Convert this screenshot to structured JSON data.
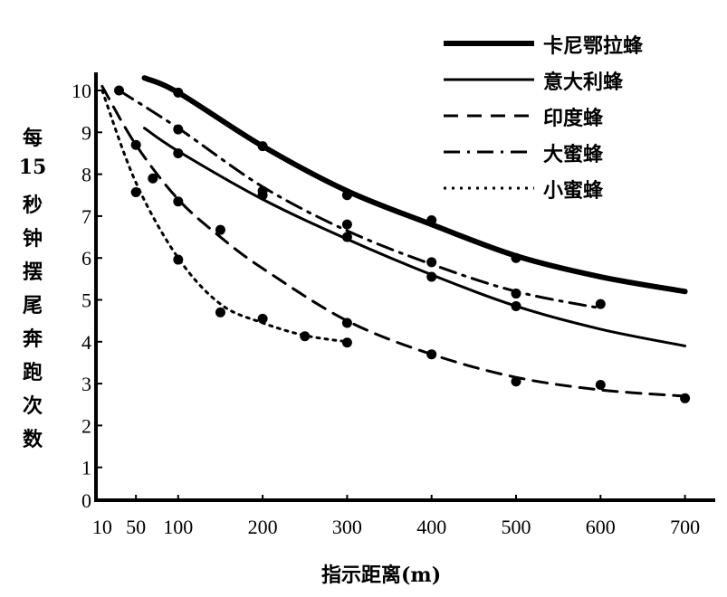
{
  "chart_data": {
    "type": "line",
    "title": "",
    "xlabel": "指示距离(m)",
    "ylabel": [
      "每",
      "15",
      "秒",
      "钟",
      "摆",
      "尾",
      "奔",
      "跑",
      "次",
      "数"
    ],
    "xlim": [
      0,
      720
    ],
    "ylim": [
      0,
      10
    ],
    "x_ticks": [
      10,
      50,
      100,
      200,
      300,
      400,
      500,
      600,
      700
    ],
    "x_tick_labels": [
      "10",
      "50",
      "100",
      "200",
      "300",
      "400",
      "500",
      "600",
      "700"
    ],
    "y_ticks": [
      0,
      1,
      2,
      3,
      4,
      5,
      6,
      7,
      8,
      9,
      10
    ],
    "y_tick_labels": [
      "0",
      "1",
      "2",
      "3",
      "4",
      "5",
      "6",
      "7",
      "8",
      "9",
      "10"
    ],
    "grid": false,
    "legend_position": "top-right",
    "series": [
      {
        "name": "卡尼鄂拉蜂",
        "style": "thick",
        "curve": [
          [
            60,
            10.3
          ],
          [
            100,
            9.95
          ],
          [
            200,
            8.67
          ],
          [
            300,
            7.6
          ],
          [
            400,
            6.8
          ],
          [
            500,
            6.05
          ],
          [
            600,
            5.55
          ],
          [
            700,
            5.2
          ]
        ],
        "points": [
          [
            100,
            9.95
          ],
          [
            200,
            8.67
          ],
          [
            300,
            7.5
          ],
          [
            400,
            6.9
          ],
          [
            500,
            6.0
          ]
        ]
      },
      {
        "name": "意大利蜂",
        "style": "solid",
        "curve": [
          [
            60,
            9.1
          ],
          [
            100,
            8.55
          ],
          [
            200,
            7.4
          ],
          [
            300,
            6.45
          ],
          [
            400,
            5.6
          ],
          [
            500,
            4.85
          ],
          [
            600,
            4.3
          ],
          [
            700,
            3.9
          ]
        ],
        "points": [
          [
            100,
            8.5
          ],
          [
            200,
            7.5
          ],
          [
            300,
            6.5
          ],
          [
            400,
            5.55
          ],
          [
            500,
            4.85
          ]
        ]
      },
      {
        "name": "印度蜂",
        "style": "dashed",
        "curve": [
          [
            10,
            10.1
          ],
          [
            50,
            8.7
          ],
          [
            100,
            7.4
          ],
          [
            150,
            6.5
          ],
          [
            200,
            5.75
          ],
          [
            300,
            4.5
          ],
          [
            400,
            3.7
          ],
          [
            500,
            3.15
          ],
          [
            600,
            2.85
          ],
          [
            700,
            2.7
          ]
        ],
        "points": [
          [
            50,
            8.7
          ],
          [
            70,
            7.9
          ],
          [
            100,
            7.35
          ],
          [
            150,
            6.67
          ],
          [
            300,
            4.45
          ],
          [
            400,
            3.7
          ],
          [
            500,
            3.05
          ],
          [
            600,
            2.97
          ],
          [
            700,
            2.65
          ]
        ]
      },
      {
        "name": "大蜜蜂",
        "style": "dashdot",
        "curve": [
          [
            30,
            10.0
          ],
          [
            100,
            9.1
          ],
          [
            200,
            7.7
          ],
          [
            300,
            6.65
          ],
          [
            400,
            5.85
          ],
          [
            500,
            5.2
          ],
          [
            600,
            4.8
          ]
        ],
        "points": [
          [
            30,
            10.0
          ],
          [
            100,
            9.07
          ],
          [
            200,
            7.6
          ],
          [
            300,
            6.8
          ],
          [
            400,
            5.9
          ],
          [
            500,
            5.15
          ],
          [
            600,
            4.9
          ]
        ]
      },
      {
        "name": "小蜜蜂",
        "style": "dotted",
        "curve": [
          [
            10,
            10.0
          ],
          [
            50,
            7.8
          ],
          [
            100,
            6.0
          ],
          [
            150,
            4.9
          ],
          [
            200,
            4.45
          ],
          [
            250,
            4.15
          ],
          [
            300,
            4.0
          ]
        ],
        "points": [
          [
            50,
            7.57
          ],
          [
            100,
            5.96
          ],
          [
            150,
            4.7
          ],
          [
            200,
            4.55
          ],
          [
            250,
            4.13
          ],
          [
            300,
            3.98
          ]
        ]
      }
    ]
  }
}
